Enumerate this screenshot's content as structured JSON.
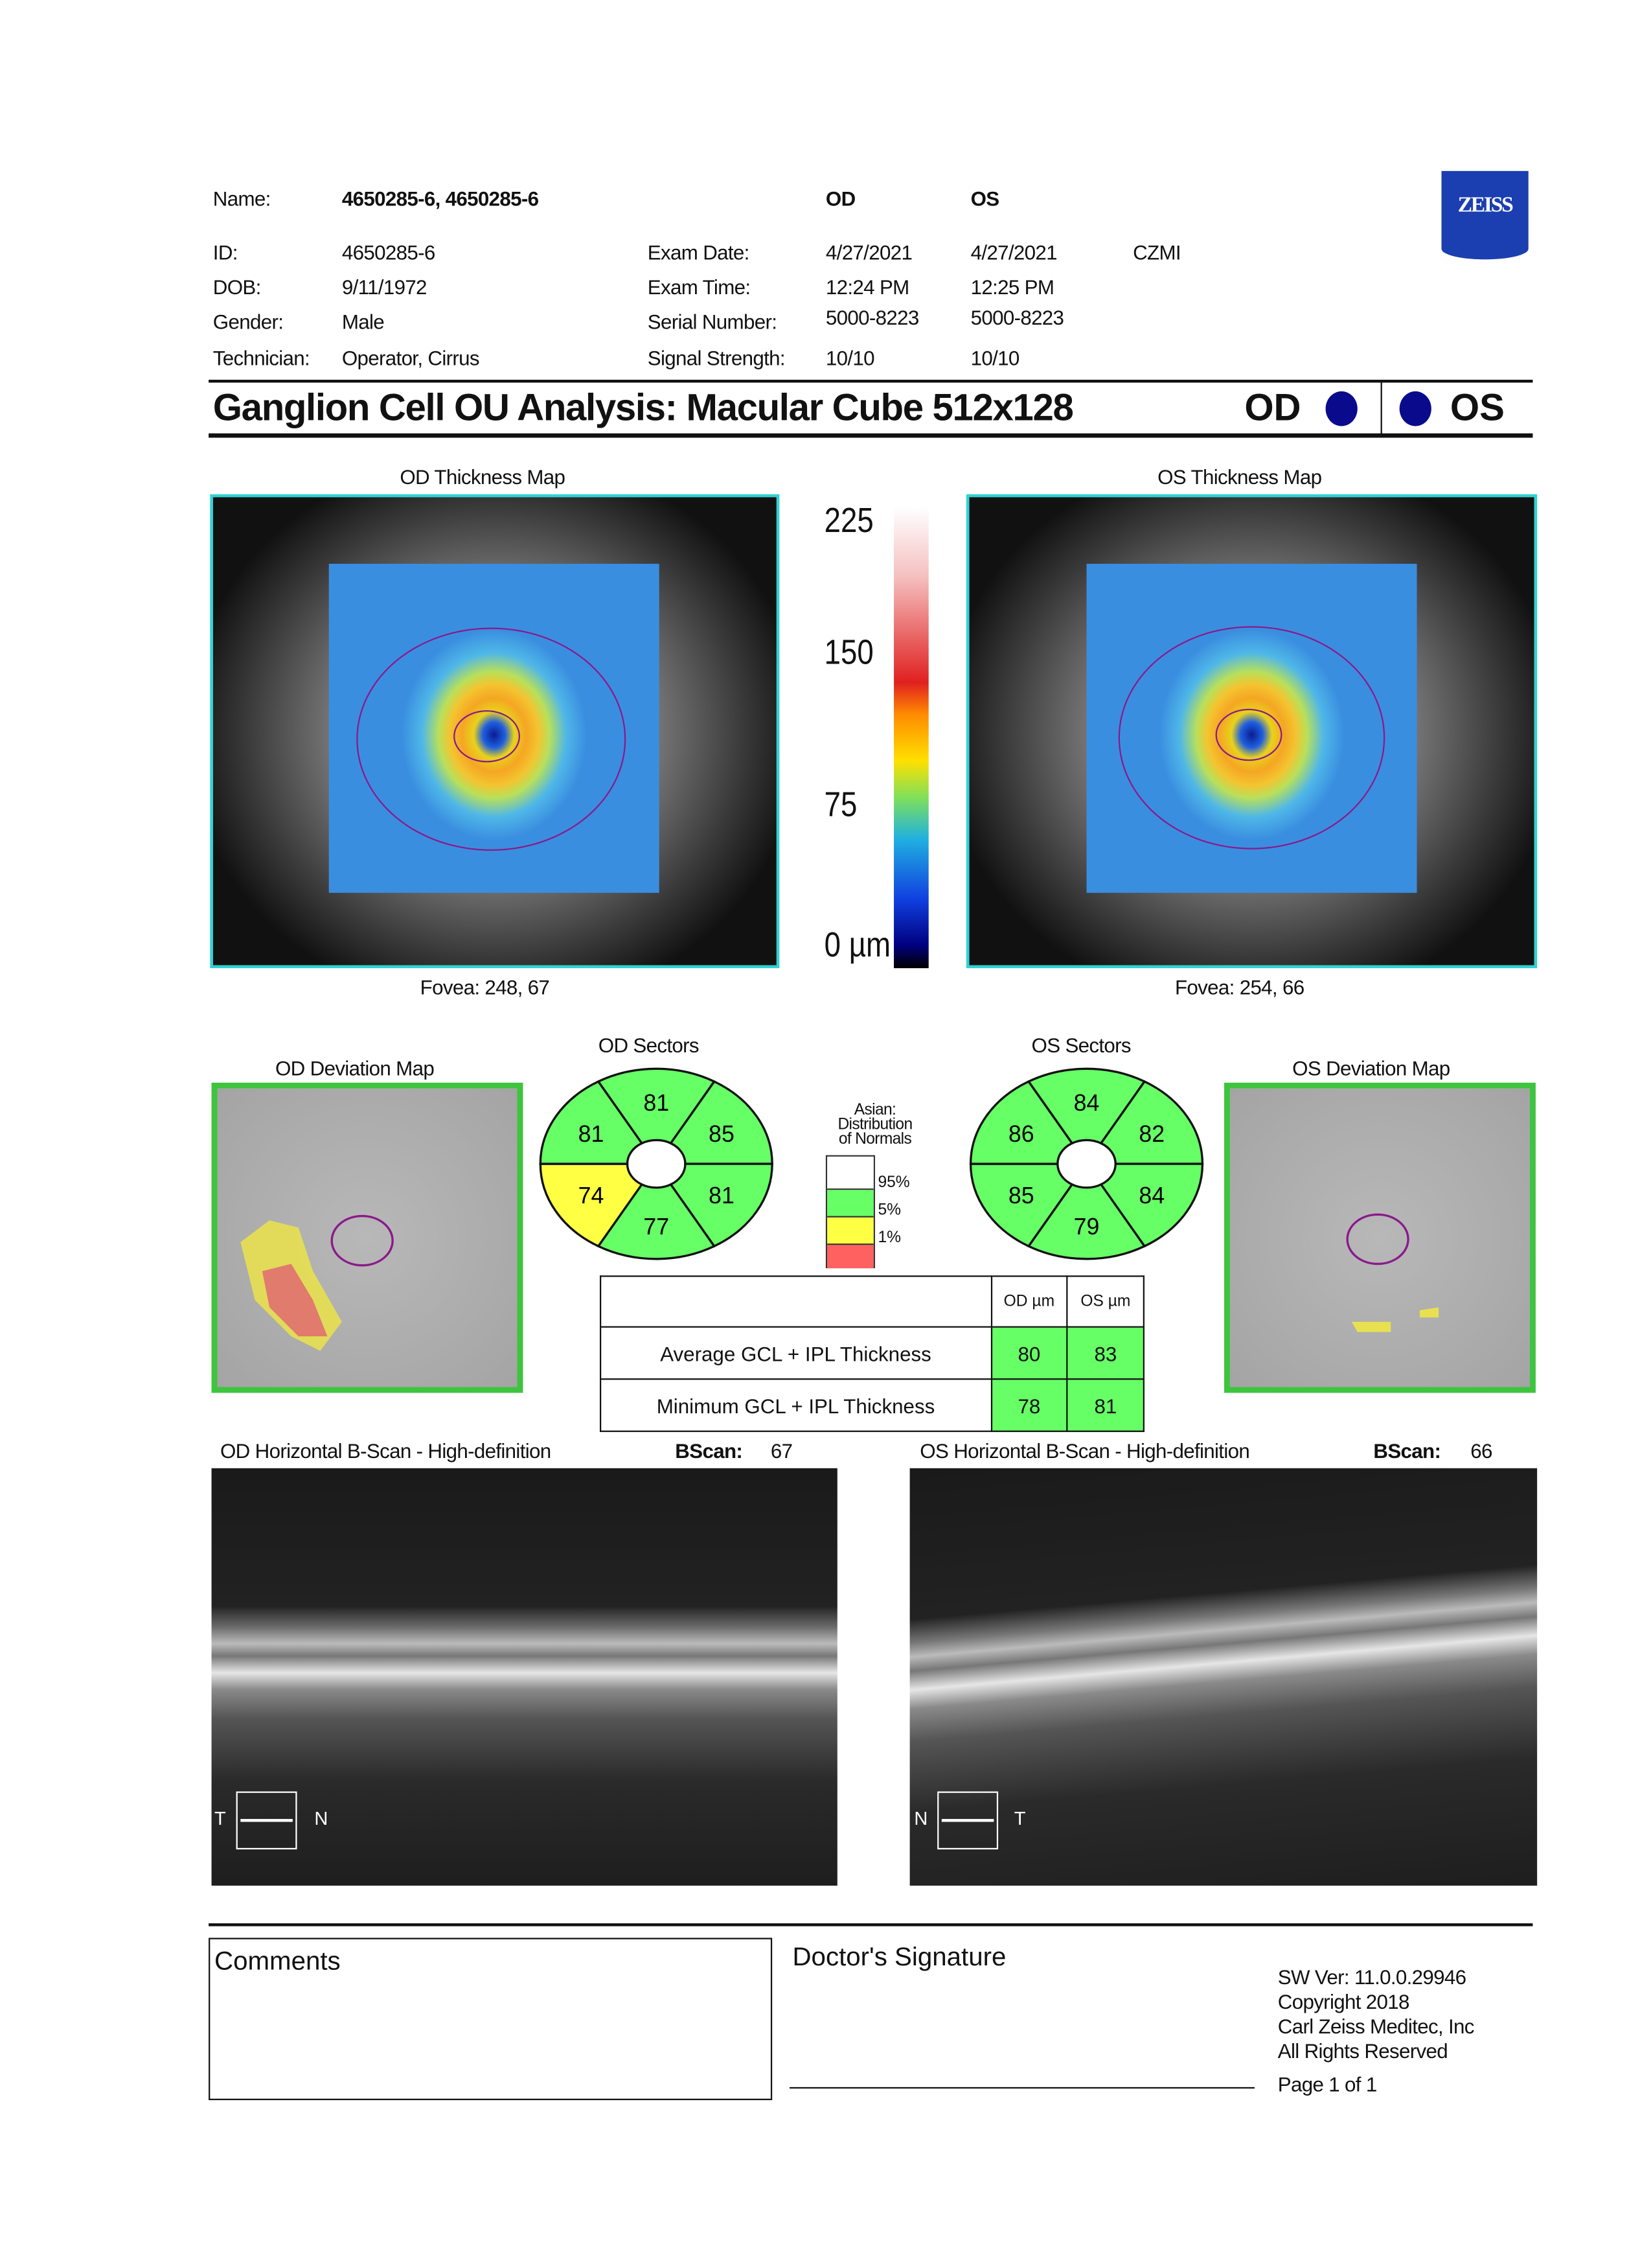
{
  "header": {
    "name_label": "Name:",
    "name": "4650285-6, 4650285-6",
    "od": "OD",
    "os": "OS",
    "id_label": "ID:",
    "id": "4650285-6",
    "dob_label": "DOB:",
    "dob": "9/11/1972",
    "gender_label": "Gender:",
    "gender": "Male",
    "tech_label": "Technician:",
    "tech": "Operator, Cirrus",
    "exam_date_label": "Exam Date:",
    "exam_date_od": "4/27/2021",
    "exam_date_os": "4/27/2021",
    "institution": "CZMI",
    "exam_time_label": "Exam Time:",
    "exam_time_od": "12:24 PM",
    "exam_time_os": "12:25 PM",
    "serial_label": "Serial Number:",
    "serial_od": "5000-8223",
    "serial_os": "5000-8223",
    "signal_label": "Signal Strength:",
    "signal_od": "10/10",
    "signal_os": "10/10",
    "logo": "ZEISS"
  },
  "title": {
    "text": "Ganglion Cell OU Analysis: Macular Cube 512x128",
    "od": "OD",
    "os": "OS",
    "eye_dot_color": "#0a0a8c"
  },
  "maps": {
    "od_title": "OD Thickness Map",
    "os_title": "OS Thickness Map",
    "od_fovea": "Fovea: 248, 67",
    "os_fovea": "Fovea: 254, 66",
    "scale_ticks": [
      "225",
      "150",
      "75",
      "0 µm"
    ]
  },
  "deviation": {
    "od_title": "OD Deviation Map",
    "os_title": "OS Deviation Map"
  },
  "sectors": {
    "od_title": "OD Sectors",
    "os_title": "OS Sectors",
    "od": [
      {
        "pos": "superior",
        "value": "81",
        "color": "#66ff66"
      },
      {
        "pos": "superior-right",
        "value": "85",
        "color": "#66ff66"
      },
      {
        "pos": "inferior-right",
        "value": "81",
        "color": "#66ff66"
      },
      {
        "pos": "inferior",
        "value": "77",
        "color": "#66ff66"
      },
      {
        "pos": "inferior-left",
        "value": "74",
        "color": "#ffff44"
      },
      {
        "pos": "superior-left",
        "value": "81",
        "color": "#66ff66"
      }
    ],
    "os": [
      {
        "pos": "superior",
        "value": "84",
        "color": "#66ff66"
      },
      {
        "pos": "superior-right",
        "value": "82",
        "color": "#66ff66"
      },
      {
        "pos": "inferior-right",
        "value": "84",
        "color": "#66ff66"
      },
      {
        "pos": "inferior",
        "value": "79",
        "color": "#66ff66"
      },
      {
        "pos": "inferior-left",
        "value": "85",
        "color": "#66ff66"
      },
      {
        "pos": "superior-left",
        "value": "86",
        "color": "#66ff66"
      }
    ]
  },
  "legend": {
    "line1": "Asian:",
    "line2": "Distribution",
    "line3": "of Normals",
    "p95": "95%",
    "p5": "5%",
    "p1": "1%",
    "colors": [
      "#ffffff",
      "#66ff66",
      "#ffff44",
      "#ff6060"
    ]
  },
  "table": {
    "col_od": "OD µm",
    "col_os": "OS µm",
    "rows": [
      {
        "label": "Average GCL + IPL Thickness",
        "od": "80",
        "os": "83"
      },
      {
        "label": "Minimum GCL + IPL Thickness",
        "od": "78",
        "os": "81"
      }
    ]
  },
  "bscan": {
    "od_title": "OD Horizontal B-Scan - High-definition",
    "os_title": "OS Horizontal B-Scan - High-definition",
    "label": "BScan:",
    "od_num": "67",
    "os_num": "66",
    "od_left": "T",
    "od_right": "N",
    "os_left": "N",
    "os_right": "T"
  },
  "footer": {
    "comments": "Comments",
    "signature": "Doctor's Signature",
    "sw": "SW Ver: 11.0.0.29946",
    "copyright": "Copyright 2018",
    "company": "Carl Zeiss Meditec, Inc",
    "rights": "All Rights Reserved",
    "page": "Page 1 of 1"
  }
}
